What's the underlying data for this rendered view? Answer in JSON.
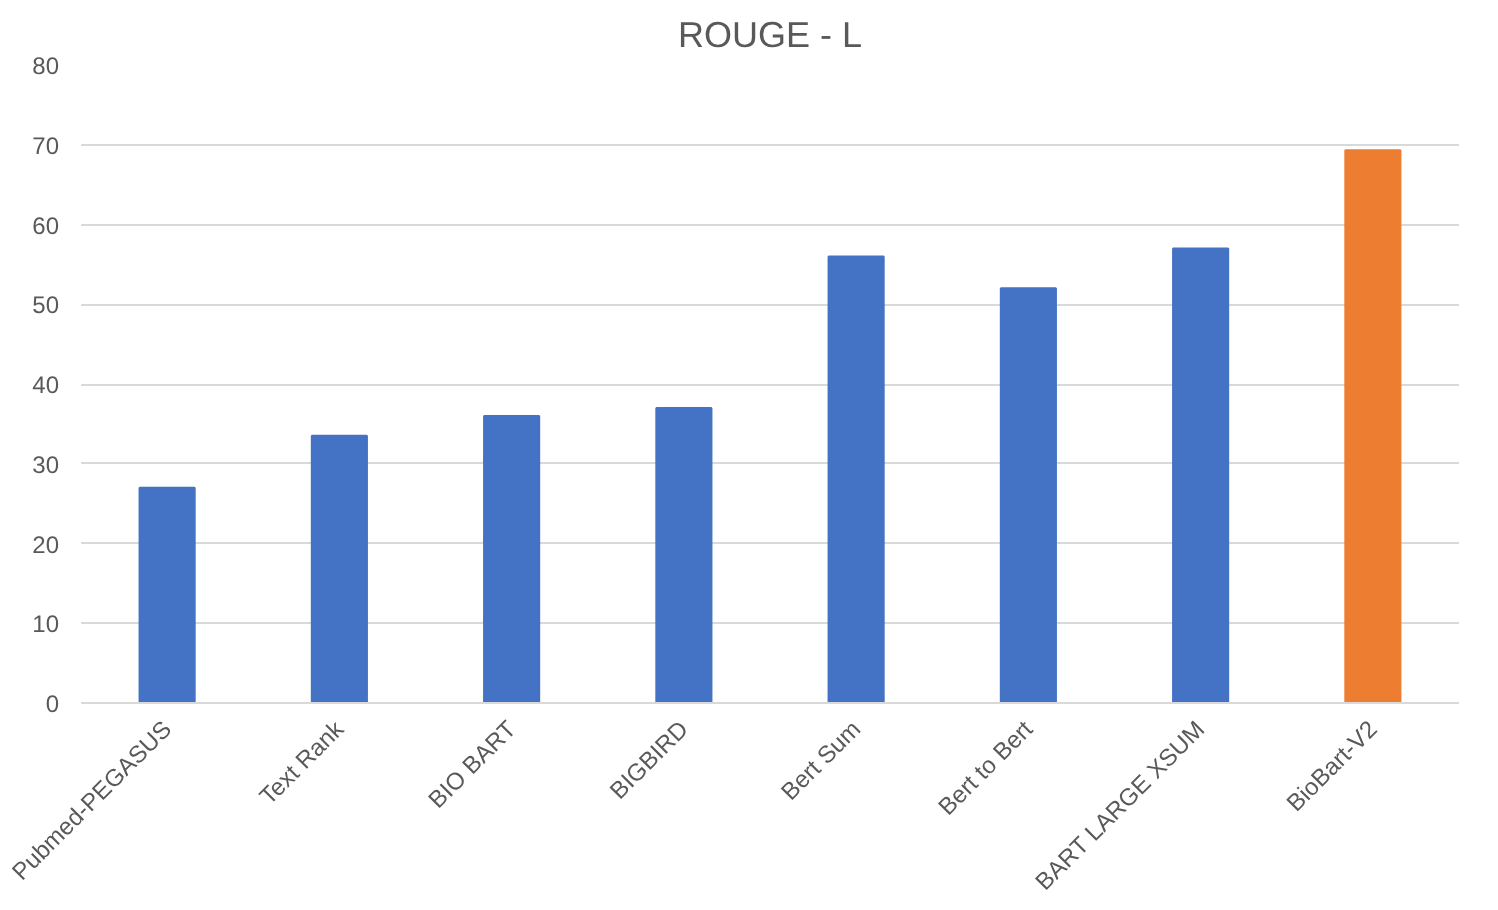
{
  "chart_data": {
    "type": "bar",
    "title": "ROUGE - L",
    "categories": [
      "Pubmed-PEGASUS",
      "Text Rank",
      "BIO BART",
      "BIGBIRD",
      "Bert Sum",
      "Bert to Bert",
      "BART LARGE XSUM",
      "BioBart-V2"
    ],
    "values": [
      27,
      33.5,
      36,
      37,
      56,
      52,
      57,
      69.3
    ],
    "colors": [
      "#4472c4",
      "#4472c4",
      "#4472c4",
      "#4472c4",
      "#4472c4",
      "#4472c4",
      "#4472c4",
      "#ed7d31"
    ],
    "ylim": [
      0,
      80
    ],
    "yticks": [
      0,
      10,
      20,
      30,
      40,
      50,
      60,
      70,
      80
    ],
    "grid": "y"
  }
}
